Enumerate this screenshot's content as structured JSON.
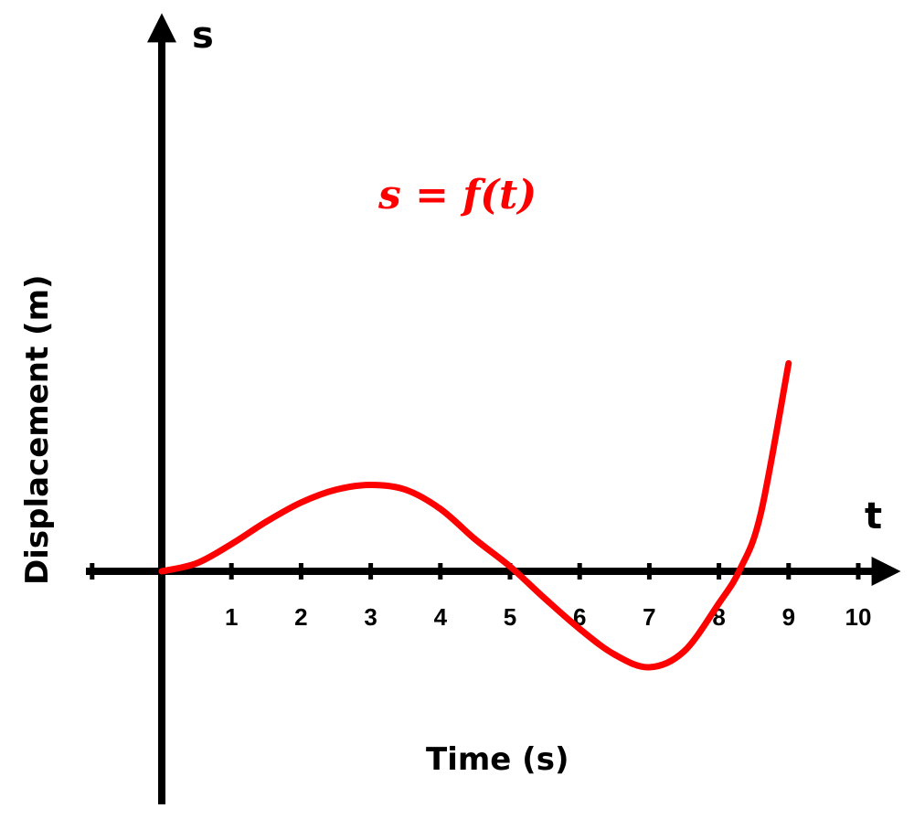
{
  "chart_data": {
    "type": "line",
    "title": "",
    "xlabel": "Time (s)",
    "ylabel": "Displacement (m)",
    "x_axis_symbol": "t",
    "y_axis_symbol": "s",
    "xlim": [
      -1,
      10.4
    ],
    "ylim": [
      -3,
      6.5
    ],
    "x_ticks": [
      1,
      2,
      3,
      4,
      5,
      6,
      7,
      8,
      9,
      10
    ],
    "x_tick_labels": [
      "1",
      "2",
      "3",
      "4",
      "5",
      "6",
      "7",
      "8",
      "9",
      "10"
    ],
    "grid": false,
    "annotation": "s = f(t)",
    "curve_color": "#ff0000",
    "axis_color": "#000000",
    "series": [
      {
        "x": [
          0,
          0.5,
          1,
          1.5,
          2,
          2.5,
          3,
          3.5,
          4,
          4.5,
          5,
          5.5,
          6,
          6.5,
          7,
          7.5,
          8,
          8.3,
          8.6,
          9
        ],
        "y": [
          0,
          0.25,
          0.85,
          1.55,
          2.15,
          2.55,
          2.7,
          2.55,
          1.95,
          1.0,
          0.15,
          -0.85,
          -1.8,
          -2.6,
          -3.0,
          -2.5,
          -1.0,
          0.05,
          1.8,
          6.5
        ]
      }
    ]
  }
}
